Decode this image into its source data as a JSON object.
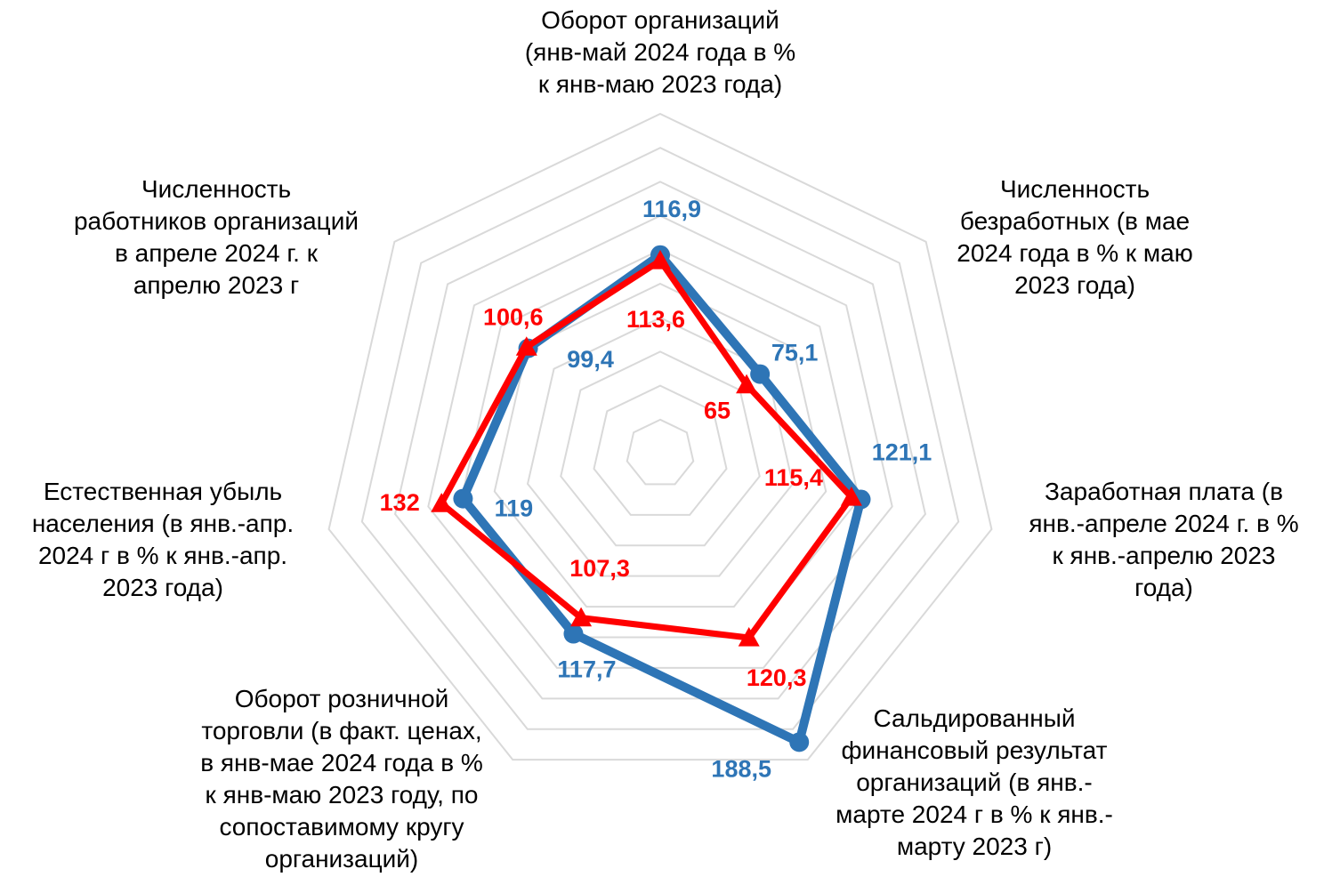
{
  "chart_data": {
    "type": "radar",
    "categories": [
      "Оборот организаций\n(янв-май 2024 года в %\nк янв-маю 2023 года)",
      "Численность\nбезработных (в мае\n2024 года в % к маю\n2023 года)",
      "Заработная плата (в\nянв.-апреле 2024 г. в %\nк янв.-апрелю 2023\nгода)",
      "Сальдированный\nфинансовый результат\nорганизаций (в янв.-\nмарте 2024 г в % к янв.-\nмарту 2023 г)",
      "Оборот розничной\nторговли (в факт. ценах,\nв янв-мае 2024 года в %\nк янв-маю 2023 году, по\nсопоставимому кругу\nорганизаций)",
      "Естественная убыль\nнаселения (в янв.-апр.\n2024 г в % к янв.-апр.\n2023 года)",
      "Численность\nработников организаций\nв апреле 2024 г. к\nапрелю 2023 г"
    ],
    "series": [
      {
        "color": "#2e75b6",
        "marker": "circle",
        "values": [
          116.9,
          75.1,
          121.1,
          188.5,
          117.7,
          119,
          99.4
        ],
        "value_labels": [
          "116,9",
          "75,1",
          "121,1",
          "188,5",
          "117,7",
          "119",
          "99,4"
        ]
      },
      {
        "color": "#ff0000",
        "marker": "triangle",
        "values": [
          113.6,
          65,
          115.4,
          120.3,
          107.3,
          132,
          100.6
        ],
        "value_labels": [
          "113,6",
          "65",
          "115,4",
          "120,3",
          "107,3",
          "132",
          "100,6"
        ]
      }
    ],
    "ylim": [
      0,
      200
    ],
    "yticks": [
      0,
      20,
      40,
      60,
      80,
      100,
      120,
      140,
      160,
      180,
      200
    ],
    "grid": true
  }
}
